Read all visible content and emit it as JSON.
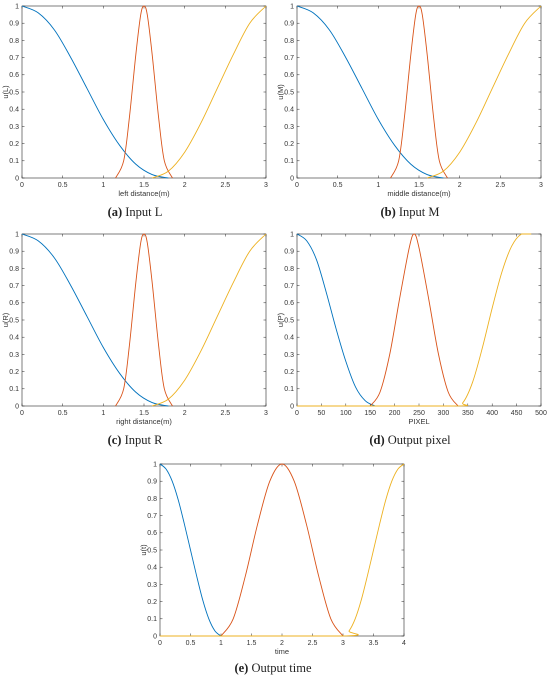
{
  "chart_data": [
    {
      "type": "line",
      "panel_label": "(a)",
      "caption": "Input L",
      "xlabel": "left distance(m)",
      "ylabel": "u(L)",
      "xlim": [
        0,
        3
      ],
      "ylim": [
        0,
        1
      ],
      "xticks": [
        "0",
        "0.5",
        "1",
        "1.5",
        "2",
        "2.5",
        "3"
      ],
      "yticks": [
        "0",
        "0.1",
        "0.2",
        "0.3",
        "0.4",
        "0.5",
        "0.6",
        "0.7",
        "0.8",
        "0.9",
        "1"
      ],
      "series": [
        {
          "color": "#0072BD",
          "points": [
            [
              0,
              1
            ],
            [
              0.2,
              0.96
            ],
            [
              0.4,
              0.86
            ],
            [
              0.6,
              0.7
            ],
            [
              0.8,
              0.52
            ],
            [
              1.0,
              0.34
            ],
            [
              1.2,
              0.19
            ],
            [
              1.4,
              0.08
            ],
            [
              1.6,
              0.02
            ],
            [
              1.8,
              0
            ]
          ]
        },
        {
          "color": "#D95319",
          "points": [
            [
              1.15,
              0
            ],
            [
              1.25,
              0.1
            ],
            [
              1.32,
              0.35
            ],
            [
              1.4,
              0.72
            ],
            [
              1.46,
              0.95
            ],
            [
              1.5,
              1
            ],
            [
              1.54,
              0.95
            ],
            [
              1.6,
              0.72
            ],
            [
              1.68,
              0.35
            ],
            [
              1.75,
              0.1
            ],
            [
              1.85,
              0
            ]
          ]
        },
        {
          "color": "#EDB120",
          "points": [
            [
              1.6,
              0
            ],
            [
              1.8,
              0.04
            ],
            [
              2.0,
              0.15
            ],
            [
              2.2,
              0.32
            ],
            [
              2.4,
              0.52
            ],
            [
              2.6,
              0.72
            ],
            [
              2.8,
              0.9
            ],
            [
              3.0,
              1
            ]
          ]
        }
      ]
    },
    {
      "type": "line",
      "panel_label": "(b)",
      "caption": "Input M",
      "xlabel": "middle distance(m)",
      "ylabel": "u(M)",
      "xlim": [
        0,
        3
      ],
      "ylim": [
        0,
        1
      ],
      "xticks": [
        "0",
        "0.5",
        "1",
        "1.5",
        "2",
        "2.5",
        "3"
      ],
      "yticks": [
        "0",
        "0.1",
        "0.2",
        "0.3",
        "0.4",
        "0.5",
        "0.6",
        "0.7",
        "0.8",
        "0.9",
        "1"
      ],
      "series": [
        {
          "color": "#0072BD",
          "points": [
            [
              0,
              1
            ],
            [
              0.2,
              0.96
            ],
            [
              0.4,
              0.86
            ],
            [
              0.6,
              0.7
            ],
            [
              0.8,
              0.52
            ],
            [
              1.0,
              0.34
            ],
            [
              1.2,
              0.19
            ],
            [
              1.4,
              0.08
            ],
            [
              1.6,
              0.02
            ],
            [
              1.8,
              0
            ]
          ]
        },
        {
          "color": "#D95319",
          "points": [
            [
              1.15,
              0
            ],
            [
              1.25,
              0.1
            ],
            [
              1.32,
              0.35
            ],
            [
              1.4,
              0.72
            ],
            [
              1.46,
              0.95
            ],
            [
              1.5,
              1
            ],
            [
              1.54,
              0.95
            ],
            [
              1.6,
              0.72
            ],
            [
              1.68,
              0.35
            ],
            [
              1.75,
              0.1
            ],
            [
              1.85,
              0
            ]
          ]
        },
        {
          "color": "#EDB120",
          "points": [
            [
              1.6,
              0
            ],
            [
              1.8,
              0.04
            ],
            [
              2.0,
              0.15
            ],
            [
              2.2,
              0.32
            ],
            [
              2.4,
              0.52
            ],
            [
              2.6,
              0.72
            ],
            [
              2.8,
              0.9
            ],
            [
              3.0,
              1
            ]
          ]
        }
      ]
    },
    {
      "type": "line",
      "panel_label": "(c)",
      "caption": "Input R",
      "xlabel": "right distance(m)",
      "ylabel": "u(R)",
      "xlim": [
        0,
        3
      ],
      "ylim": [
        0,
        1
      ],
      "xticks": [
        "0",
        "0.5",
        "1",
        "1.5",
        "2",
        "2.5",
        "3"
      ],
      "yticks": [
        "0",
        "0.1",
        "0.2",
        "0.3",
        "0.4",
        "0.5",
        "0.6",
        "0.7",
        "0.8",
        "0.9",
        "1"
      ],
      "series": [
        {
          "color": "#0072BD",
          "points": [
            [
              0,
              1
            ],
            [
              0.2,
              0.96
            ],
            [
              0.4,
              0.86
            ],
            [
              0.6,
              0.7
            ],
            [
              0.8,
              0.52
            ],
            [
              1.0,
              0.34
            ],
            [
              1.2,
              0.19
            ],
            [
              1.4,
              0.08
            ],
            [
              1.6,
              0.02
            ],
            [
              1.8,
              0
            ]
          ]
        },
        {
          "color": "#D95319",
          "points": [
            [
              1.15,
              0
            ],
            [
              1.25,
              0.1
            ],
            [
              1.32,
              0.35
            ],
            [
              1.4,
              0.72
            ],
            [
              1.46,
              0.95
            ],
            [
              1.5,
              1
            ],
            [
              1.54,
              0.95
            ],
            [
              1.6,
              0.72
            ],
            [
              1.68,
              0.35
            ],
            [
              1.75,
              0.1
            ],
            [
              1.85,
              0
            ]
          ]
        },
        {
          "color": "#EDB120",
          "points": [
            [
              1.6,
              0
            ],
            [
              1.8,
              0.04
            ],
            [
              2.0,
              0.15
            ],
            [
              2.2,
              0.32
            ],
            [
              2.4,
              0.52
            ],
            [
              2.6,
              0.72
            ],
            [
              2.8,
              0.9
            ],
            [
              3.0,
              1
            ]
          ]
        }
      ]
    },
    {
      "type": "line",
      "panel_label": "(d)",
      "caption": "Output pixel",
      "xlabel": "PIXEL",
      "ylabel": "u(P)",
      "xlim": [
        0,
        500
      ],
      "ylim": [
        0,
        1
      ],
      "xticks": [
        "0",
        "50",
        "100",
        "150",
        "200",
        "250",
        "300",
        "350",
        "400",
        "450",
        "500"
      ],
      "yticks": [
        "0",
        "0.1",
        "0.2",
        "0.3",
        "0.4",
        "0.5",
        "0.6",
        "0.7",
        "0.8",
        "0.9",
        "1"
      ],
      "series": [
        {
          "color": "#0072BD",
          "points": [
            [
              0,
              1
            ],
            [
              20,
              0.96
            ],
            [
              40,
              0.85
            ],
            [
              60,
              0.66
            ],
            [
              80,
              0.45
            ],
            [
              100,
              0.26
            ],
            [
              120,
              0.11
            ],
            [
              140,
              0.03
            ],
            [
              160,
              0
            ]
          ]
        },
        {
          "color": "#D95319",
          "points": [
            [
              150,
              0
            ],
            [
              170,
              0.08
            ],
            [
              190,
              0.3
            ],
            [
              210,
              0.62
            ],
            [
              230,
              0.92
            ],
            [
              240,
              1
            ],
            [
              250,
              0.92
            ],
            [
              270,
              0.62
            ],
            [
              290,
              0.3
            ],
            [
              310,
              0.08
            ],
            [
              330,
              0
            ]
          ]
        },
        {
          "color": "#EDB120",
          "points": [
            [
              0,
              0
            ],
            [
              320,
              0
            ],
            [
              340,
              0.02
            ],
            [
              360,
              0.14
            ],
            [
              380,
              0.34
            ],
            [
              400,
              0.57
            ],
            [
              420,
              0.78
            ],
            [
              440,
              0.93
            ],
            [
              460,
              1
            ],
            [
              480,
              1
            ]
          ]
        }
      ]
    },
    {
      "type": "line",
      "panel_label": "(e)",
      "caption": "Output time",
      "xlabel": "time",
      "ylabel": "u(t)",
      "xlim": [
        0,
        4
      ],
      "ylim": [
        0,
        1
      ],
      "xticks": [
        "0",
        "0.5",
        "1",
        "1.5",
        "2",
        "2.5",
        "3",
        "3.5",
        "4"
      ],
      "yticks": [
        "0",
        "0.1",
        "0.2",
        "0.3",
        "0.4",
        "0.5",
        "0.6",
        "0.7",
        "0.8",
        "0.9",
        "1"
      ],
      "series": [
        {
          "color": "#0072BD",
          "points": [
            [
              0,
              1
            ],
            [
              0.1,
              0.97
            ],
            [
              0.2,
              0.9
            ],
            [
              0.3,
              0.79
            ],
            [
              0.4,
              0.65
            ],
            [
              0.5,
              0.5
            ],
            [
              0.6,
              0.35
            ],
            [
              0.7,
              0.21
            ],
            [
              0.8,
              0.1
            ],
            [
              0.9,
              0.03
            ],
            [
              1.0,
              0
            ]
          ]
        },
        {
          "color": "#D95319",
          "points": [
            [
              1,
              0
            ],
            [
              1.2,
              0.1
            ],
            [
              1.4,
              0.35
            ],
            [
              1.6,
              0.65
            ],
            [
              1.8,
              0.9
            ],
            [
              2,
              1
            ],
            [
              2.2,
              0.9
            ],
            [
              2.4,
              0.65
            ],
            [
              2.6,
              0.35
            ],
            [
              2.8,
              0.1
            ],
            [
              3,
              0
            ]
          ]
        },
        {
          "color": "#EDB120",
          "points": [
            [
              0,
              0
            ],
            [
              3,
              0
            ],
            [
              3.1,
              0.03
            ],
            [
              3.2,
              0.1
            ],
            [
              3.3,
              0.21
            ],
            [
              3.4,
              0.35
            ],
            [
              3.5,
              0.5
            ],
            [
              3.6,
              0.65
            ],
            [
              3.7,
              0.79
            ],
            [
              3.8,
              0.9
            ],
            [
              3.9,
              0.97
            ],
            [
              4,
              1
            ]
          ]
        }
      ]
    }
  ]
}
